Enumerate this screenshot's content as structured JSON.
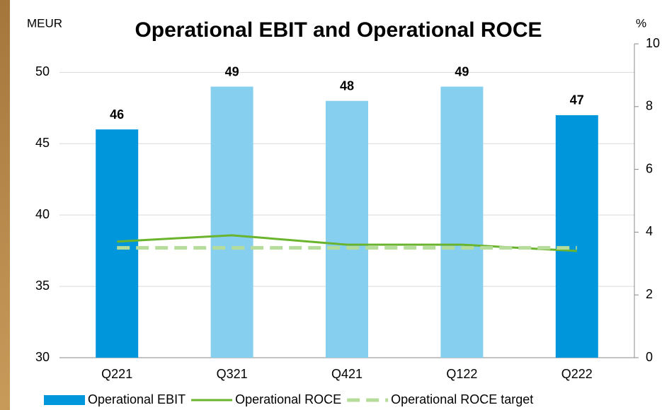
{
  "chart_data": {
    "type": "bar-line",
    "title": "Operational EBIT and Operational ROCE",
    "y_label": "MEUR",
    "y2_label": "%",
    "categories": [
      "Q221",
      "Q321",
      "Q421",
      "Q122",
      "Q222"
    ],
    "series": [
      {
        "name": "Operational EBIT",
        "type": "bar",
        "color": "#0096dc",
        "colors": [
          "#0096dc",
          "#87cfee",
          "#87cfee",
          "#87cfee",
          "#0096dc"
        ],
        "values": [
          46,
          49,
          48,
          49,
          47
        ]
      },
      {
        "name": "Operational ROCE",
        "type": "line",
        "axis": "y2",
        "color": "#6ab42d",
        "values": [
          3.7,
          3.9,
          3.6,
          3.6,
          3.4
        ]
      },
      {
        "name": "Operational ROCE target",
        "type": "line",
        "axis": "y2",
        "dashed": true,
        "color": "#b5dc9a",
        "values": [
          3.5,
          3.5,
          3.5,
          3.5,
          3.5
        ]
      }
    ],
    "ylim": [
      30,
      52
    ],
    "yticks": [
      30,
      35,
      40,
      45,
      50
    ],
    "y2lim": [
      0,
      10
    ],
    "y2ticks": [
      0,
      2,
      4,
      6,
      8,
      10
    ],
    "grid": true
  }
}
